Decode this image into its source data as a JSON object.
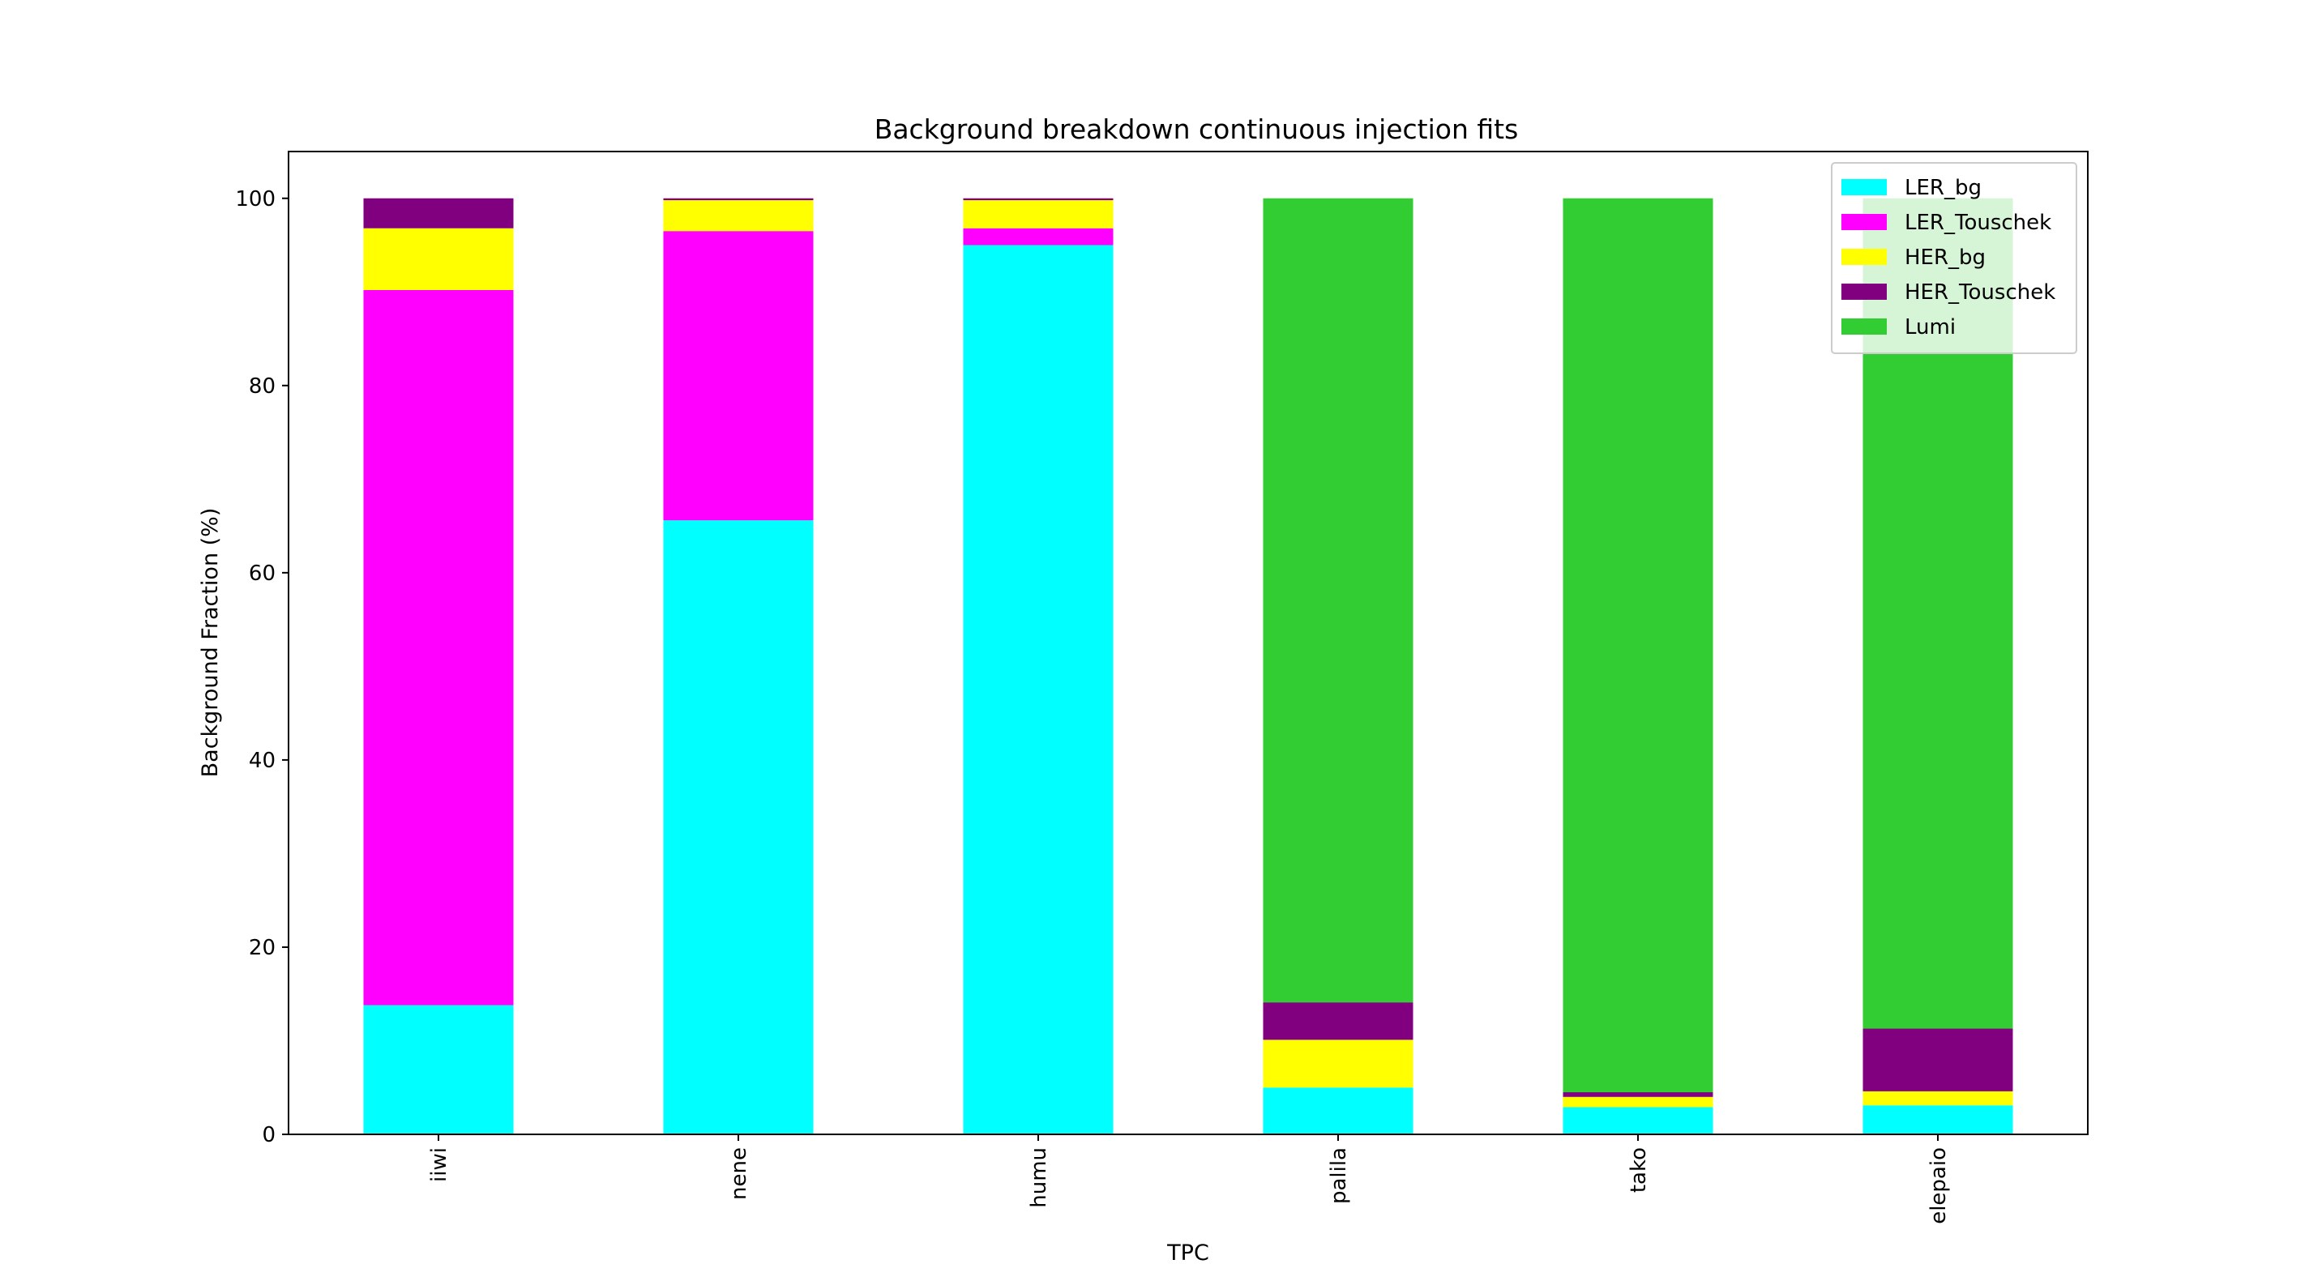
{
  "chart_data": {
    "type": "bar",
    "stacked": true,
    "title": "Background breakdown continuous injection fits",
    "xlabel": "TPC",
    "ylabel": "Background Fraction (%)",
    "ylim": [
      0,
      105
    ],
    "yticks": [
      0,
      20,
      40,
      60,
      80,
      100
    ],
    "grid": false,
    "legend_position": "top-right",
    "categories": [
      "iiwi",
      "nene",
      "humu",
      "palila",
      "tako",
      "elepaio"
    ],
    "series": [
      {
        "name": "LER_bg",
        "color": "#00ffff",
        "values": [
          13.8,
          65.6,
          95.0,
          5.0,
          2.9,
          3.1
        ]
      },
      {
        "name": "LER_Touschek",
        "color": "#ff00ff",
        "values": [
          76.4,
          30.9,
          1.8,
          0.0,
          0.0,
          0.0
        ]
      },
      {
        "name": "HER_bg",
        "color": "#ffff00",
        "values": [
          6.6,
          3.3,
          3.0,
          5.1,
          1.1,
          1.5
        ]
      },
      {
        "name": "HER_Touschek",
        "color": "#800080",
        "values": [
          3.2,
          0.2,
          0.2,
          4.0,
          0.5,
          6.7
        ]
      },
      {
        "name": "Lumi",
        "color": "#32cd32",
        "values": [
          0.0,
          0.0,
          0.0,
          85.9,
          95.5,
          88.7
        ]
      }
    ]
  }
}
